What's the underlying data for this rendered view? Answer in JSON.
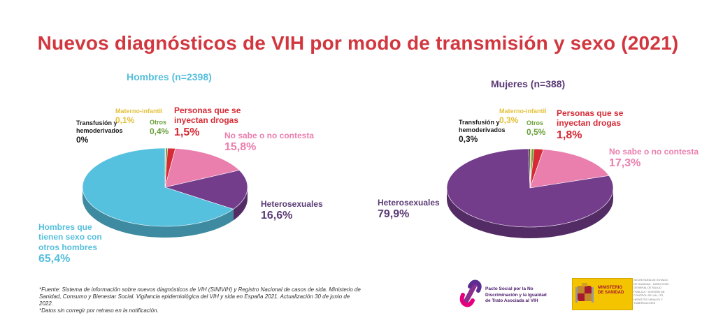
{
  "title": "Nuevos diagnósticos de VIH por modo de transmisión y sexo (2021)",
  "colors": {
    "title": "#d2373f",
    "hombres_title": "#56bfdc",
    "mujeres_title": "#5a3a74",
    "hsh": "#56c1df",
    "idu": "#d62a35",
    "hetero": "#743d8c",
    "nosabe": "#ea7fae",
    "otros": "#6aa03a",
    "materno": "#e3c13a",
    "transfusion": "#1a1a1a"
  },
  "chart_data": [
    {
      "type": "pie",
      "title": "Hombres  (n=2398)",
      "slices": [
        {
          "label": "Materno-infantil",
          "value": 0.1,
          "text": "0,1%"
        },
        {
          "label": "Otros",
          "value": 0.4,
          "text": "0,4%"
        },
        {
          "label": "Personas que se inyectan drogas",
          "value": 1.5,
          "text": "1,5%"
        },
        {
          "label": "No sabe o no contesta",
          "value": 15.8,
          "text": "15,8%"
        },
        {
          "label": "Heterosexuales",
          "value": 16.6,
          "text": "16,6%"
        },
        {
          "label": "Hombres que tienen sexo con otros hombres",
          "value": 65.4,
          "text": "65,4%"
        },
        {
          "label": "Transfusión y hemoderivados",
          "value": 0,
          "text": "0%"
        }
      ]
    },
    {
      "type": "pie",
      "title": "Mujeres  (n=388)",
      "slices": [
        {
          "label": "Materno-infantil",
          "value": 0.3,
          "text": "0,3%"
        },
        {
          "label": "Otros",
          "value": 0.5,
          "text": "0,5%"
        },
        {
          "label": "Personas que se inyectan drogas",
          "value": 1.8,
          "text": "1,8%"
        },
        {
          "label": "No sabe o no contesta",
          "value": 17.3,
          "text": "17,3%"
        },
        {
          "label": "Heterosexuales",
          "value": 79.9,
          "text": "79,9%"
        },
        {
          "label": "Transfusión y hemoderivados",
          "value": 0.3,
          "text": "0,3%"
        }
      ]
    }
  ],
  "labels": {
    "hombres": {
      "transfusion_name": "Transfusión y hemoderivados",
      "transfusion_val": "0%",
      "materno_name": "Materno-infantil",
      "materno_val": "0,1%",
      "otros_name": "Otros",
      "otros_val": "0,4%",
      "idu_name": "Personas que se inyectan drogas",
      "idu_val": "1,5%",
      "nosabe_name": "No sabe o no contesta",
      "nosabe_val": "15,8%",
      "hetero_name": "Heterosexuales",
      "hetero_val": "16,6%",
      "hsh_name": "Hombres que tienen sexo con otros hombres",
      "hsh_val": "65,4%"
    },
    "mujeres": {
      "transfusion_name": "Transfusión y hemoderivados",
      "transfusion_val": "0,3%",
      "materno_name": "Materno-infantil",
      "materno_val": "0,3%",
      "otros_name": "Otros",
      "otros_val": "0,5%",
      "idu_name": "Personas que se inyectan drogas",
      "idu_val": "1,8%",
      "nosabe_name": "No sabe o no contesta",
      "nosabe_val": "17,3%",
      "hetero_name": "Heterosexuales",
      "hetero_val": "79,9%"
    }
  },
  "footer": {
    "line1": "*Fuente: Sistema de información sobre nuevos diagnósticos de VIH (SINIVIH) y Registro Nacional de casos de sida. Ministerio de Sanidad, Consumo y Bienestar Social. Vigilancia epidemiológica del VIH y sida en España 2021. Actualización 30 de junio de 2022.",
    "line2": "*Datos sin corregir por retraso en la notificación."
  },
  "logos": {
    "pacto": "Pacto Social por la No Discriminación y la Igualdad de Trato Asociada al VIH",
    "ministerio": "MINISTERIO DE SANIDAD",
    "ministerio_sub": "SECRETARÍA DE ESTADO DE SANIDAD · DIRECCIÓN GENERAL DE SALUD PÚBLICA · DIVISIÓN DE CONTROL DE VIH, ITS, HEPATITIS VIRALES Y TUBERCULOSIS"
  }
}
